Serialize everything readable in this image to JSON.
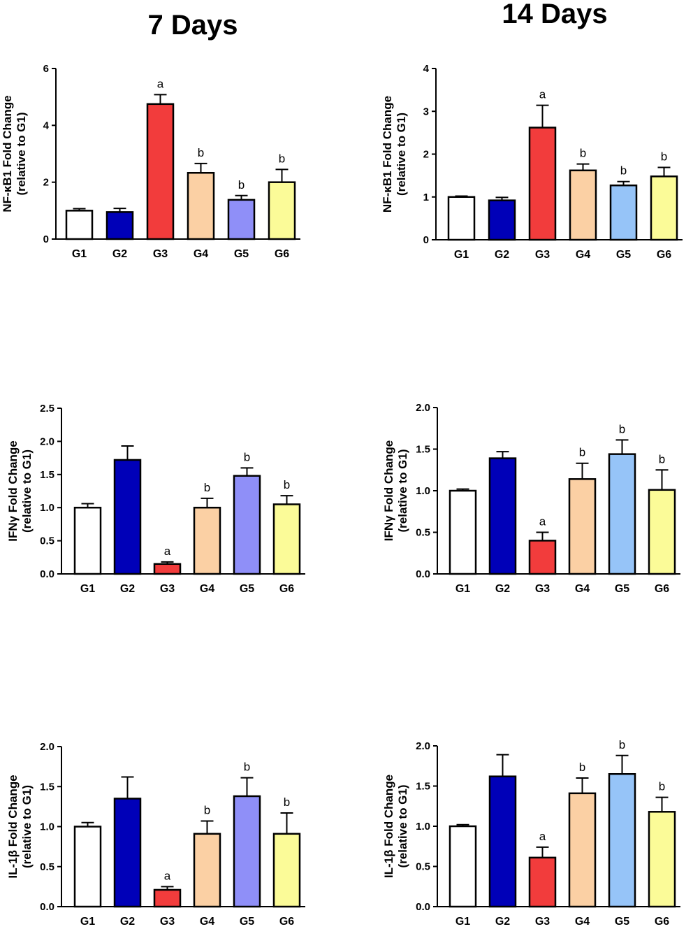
{
  "column_titles": [
    "7 Days",
    "14 Days"
  ],
  "colors": {
    "G1": "#ffffff",
    "G2": "#0000b8",
    "G3": "#f23c3c",
    "G4": "#fbd0a4",
    "G5_7days": "#8f8ff8",
    "G5_14days": "#96c4f8",
    "G6": "#fbfb98",
    "outline": "#000000"
  },
  "chart_data": [
    {
      "type": "bar",
      "panel": "7 Days",
      "title": "",
      "ylabel_line1": "NF-κB1 Fold Change",
      "ylabel_line2": "(relative to G1)",
      "categories": [
        "G1",
        "G2",
        "G3",
        "G4",
        "G5",
        "G6"
      ],
      "values": [
        1.0,
        0.95,
        4.75,
        2.33,
        1.38,
        2.0
      ],
      "errors": [
        0.07,
        0.13,
        0.33,
        0.33,
        0.15,
        0.45
      ],
      "significance": [
        "",
        "",
        "a",
        "b",
        "b",
        "b"
      ],
      "ylim": [
        0,
        6
      ],
      "yticks": [
        "0",
        "2",
        "4",
        "6"
      ],
      "bar_colors": [
        "#ffffff",
        "#0000b8",
        "#f23c3c",
        "#fbd0a4",
        "#8f8ff8",
        "#fbfb98"
      ]
    },
    {
      "type": "bar",
      "panel": "14 Days",
      "title": "",
      "ylabel_line1": "NF-κB1 Fold Change",
      "ylabel_line2": "(relative to G1)",
      "categories": [
        "G1",
        "G2",
        "G3",
        "G4",
        "G5",
        "G6"
      ],
      "values": [
        1.0,
        0.92,
        2.62,
        1.62,
        1.27,
        1.48
      ],
      "errors": [
        0.02,
        0.07,
        0.52,
        0.15,
        0.09,
        0.21
      ],
      "significance": [
        "",
        "",
        "a",
        "b",
        "b",
        "b"
      ],
      "ylim": [
        0,
        4
      ],
      "yticks": [
        "0",
        "1",
        "2",
        "3",
        "4"
      ],
      "bar_colors": [
        "#ffffff",
        "#0000b8",
        "#f23c3c",
        "#fbd0a4",
        "#96c4f8",
        "#fbfb98"
      ]
    },
    {
      "type": "bar",
      "panel": "7 Days",
      "title": "",
      "ylabel_line1": "IFNγ Fold Change",
      "ylabel_line2": "(relative to G1)",
      "categories": [
        "G1",
        "G2",
        "G3",
        "G4",
        "G5",
        "G6"
      ],
      "values": [
        1.0,
        1.72,
        0.15,
        1.0,
        1.48,
        1.05
      ],
      "errors": [
        0.06,
        0.21,
        0.03,
        0.14,
        0.12,
        0.13
      ],
      "significance": [
        "",
        "",
        "a",
        "b",
        "b",
        "b"
      ],
      "ylim": [
        0,
        2.5
      ],
      "yticks": [
        "0.0",
        "0.5",
        "1.0",
        "1.5",
        "2.0",
        "2.5"
      ],
      "bar_colors": [
        "#ffffff",
        "#0000b8",
        "#f23c3c",
        "#fbd0a4",
        "#8f8ff8",
        "#fbfb98"
      ]
    },
    {
      "type": "bar",
      "panel": "14 Days",
      "title": "",
      "ylabel_line1": "IFNγ Fold Change",
      "ylabel_line2": "(relative to G1)",
      "categories": [
        "G1",
        "G2",
        "G3",
        "G4",
        "G5",
        "G6"
      ],
      "values": [
        1.0,
        1.39,
        0.4,
        1.14,
        1.44,
        1.01
      ],
      "errors": [
        0.02,
        0.08,
        0.1,
        0.19,
        0.17,
        0.24
      ],
      "significance": [
        "",
        "",
        "a",
        "b",
        "b",
        "b"
      ],
      "ylim": [
        0,
        2
      ],
      "yticks": [
        "0.0",
        "0.5",
        "1.0",
        "1.5",
        "2.0"
      ],
      "bar_colors": [
        "#ffffff",
        "#0000b8",
        "#f23c3c",
        "#fbd0a4",
        "#96c4f8",
        "#fbfb98"
      ]
    },
    {
      "type": "bar",
      "panel": "7 Days",
      "title": "",
      "ylabel_line1": "IL-1β Fold Change",
      "ylabel_line2": "(relative to G1)",
      "categories": [
        "G1",
        "G2",
        "G3",
        "G4",
        "G5",
        "G6"
      ],
      "values": [
        1.0,
        1.35,
        0.21,
        0.91,
        1.38,
        0.91
      ],
      "errors": [
        0.05,
        0.27,
        0.04,
        0.16,
        0.23,
        0.26
      ],
      "significance": [
        "",
        "",
        "a",
        "b",
        "b",
        "b"
      ],
      "ylim": [
        0,
        2
      ],
      "yticks": [
        "0.0",
        "0.5",
        "1.0",
        "1.5",
        "2.0"
      ],
      "bar_colors": [
        "#ffffff",
        "#0000b8",
        "#f23c3c",
        "#fbd0a4",
        "#8f8ff8",
        "#fbfb98"
      ]
    },
    {
      "type": "bar",
      "panel": "14 Days",
      "title": "",
      "ylabel_line1": "IL-1β Fold Change",
      "ylabel_line2": "(relative to G1)",
      "categories": [
        "G1",
        "G2",
        "G3",
        "G4",
        "G5",
        "G6"
      ],
      "values": [
        1.0,
        1.62,
        0.61,
        1.41,
        1.65,
        1.18
      ],
      "errors": [
        0.02,
        0.27,
        0.13,
        0.19,
        0.23,
        0.18
      ],
      "significance": [
        "",
        "",
        "a",
        "b",
        "b",
        "b"
      ],
      "ylim": [
        0,
        2
      ],
      "yticks": [
        "0.0",
        "0.5",
        "1.0",
        "1.5",
        "2.0"
      ],
      "bar_colors": [
        "#ffffff",
        "#0000b8",
        "#f23c3c",
        "#fbd0a4",
        "#96c4f8",
        "#fbfb98"
      ]
    }
  ]
}
